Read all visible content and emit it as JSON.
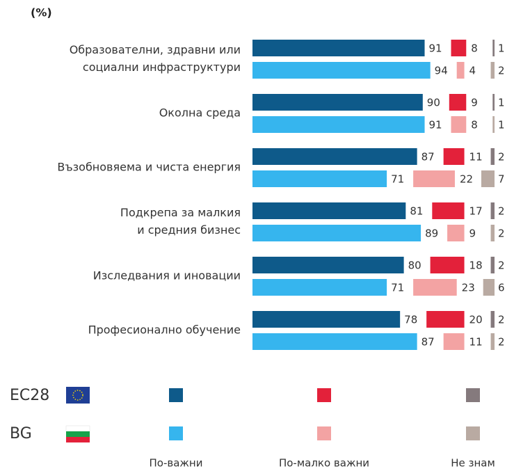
{
  "chart_data": {
    "type": "grouped-bar",
    "title": "(%)",
    "categories": [
      [
        "Образователни, здравни или",
        "социални инфраструктури"
      ],
      [
        "Околна среда"
      ],
      [
        "Възобновяема и чиста енергия"
      ],
      [
        "Подкрепа за малкия",
        "и средния бизнес"
      ],
      [
        "Изследвания и иновации"
      ],
      [
        "Професионално обучение"
      ]
    ],
    "groups": [
      {
        "name": "EC28",
        "series": [
          {
            "name": "По-важни",
            "color": "#0e5a8a",
            "values": [
              91,
              90,
              87,
              81,
              80,
              78
            ]
          },
          {
            "name": "По-малко важни",
            "color": "#e3213a",
            "values": [
              8,
              9,
              11,
              17,
              18,
              20
            ]
          },
          {
            "name": "Не знам",
            "color": "#857a7d",
            "values": [
              1,
              1,
              2,
              2,
              2,
              2
            ]
          }
        ]
      },
      {
        "name": "BG",
        "series": [
          {
            "name": "По-важни",
            "color": "#36b5ee",
            "values": [
              94,
              91,
              71,
              89,
              71,
              87
            ]
          },
          {
            "name": "По-малко важни",
            "color": "#f3a3a3",
            "values": [
              4,
              8,
              22,
              9,
              23,
              11
            ]
          },
          {
            "name": "Не знам",
            "color": "#b9aaa2",
            "values": [
              2,
              1,
              7,
              2,
              6,
              2
            ]
          }
        ]
      }
    ]
  }
}
